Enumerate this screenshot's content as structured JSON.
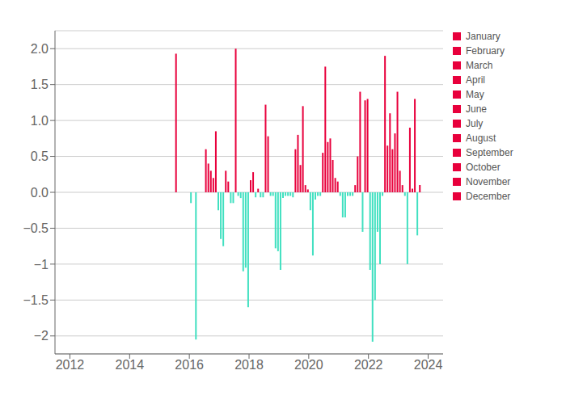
{
  "chart_data": {
    "type": "bar",
    "x_numeric": true,
    "xlim": [
      2011.5,
      2024.5
    ],
    "xticks": [
      2012,
      2014,
      2016,
      2018,
      2020,
      2022,
      2024
    ],
    "ylim": [
      -2.25,
      2.25
    ],
    "yticks": [
      {
        "value": -2.0,
        "label": "−2"
      },
      {
        "value": -1.5,
        "label": "−1.5"
      },
      {
        "value": -1.0,
        "label": "−1"
      },
      {
        "value": -0.5,
        "label": "−0.5"
      },
      {
        "value": 0.0,
        "label": "0.0"
      },
      0.5,
      {
        "value": 1.0,
        "label": "1.0"
      },
      1.5,
      {
        "value": 2.0,
        "label": "2.0"
      }
    ],
    "grid": true,
    "legend": "right",
    "series": [
      {
        "name": "January",
        "color": "#e8003c",
        "x": [
          2015.5416666666667,
          2016.5416666666667,
          2017.5416666666667,
          2018.5416666666667,
          2019.5416666666667,
          2020.5416666666667,
          2021.5416666666667,
          2022.5416666666667,
          2023.5416666666667
        ],
        "values": [
          1.93,
          0.6,
          2.0,
          1.22,
          0.6,
          1.75,
          0.1,
          1.9,
          1.3
        ],
        "colors": [
          "#e8003c",
          "#e8003c",
          "#e8003c",
          "#e8003c",
          "#e8003c",
          "#e8003c",
          "#e8003c",
          "#e8003c",
          "#e8003c"
        ]
      },
      {
        "name": "February",
        "color": "#e8003c",
        "x": [
          2016.625,
          2017.625,
          2018.625,
          2019.625,
          2020.625,
          2021.625,
          2022.625,
          2023.625
        ],
        "values": [
          0.4,
          -0.05,
          0.78,
          0.8,
          0.7,
          0.5,
          0.65,
          -0.6
        ],
        "colors": [
          "#e8003c",
          "#40e0c0",
          "#e8003c",
          "#e8003c",
          "#e8003c",
          "#e8003c",
          "#e8003c",
          "#40e0c0"
        ]
      },
      {
        "name": "March",
        "color": "#e8003c",
        "x": [
          2016.7083333333333,
          2017.7083333333333,
          2018.7083333333333,
          2019.7083333333333,
          2020.7083333333333,
          2021.7083333333333,
          2022.7083333333333,
          2023.7083333333333
        ],
        "values": [
          0.3,
          -0.08,
          -0.05,
          0.38,
          0.75,
          1.4,
          1.1,
          0.1
        ],
        "colors": [
          "#e8003c",
          "#40e0c0",
          "#40e0c0",
          "#e8003c",
          "#e8003c",
          "#e8003c",
          "#e8003c",
          "#e8003c"
        ]
      },
      {
        "name": "April",
        "color": "#e8003c",
        "x": [
          2016.7916666666667,
          2017.7916666666667,
          2018.7916666666667,
          2019.7916666666667,
          2020.7916666666667,
          2021.7916666666667,
          2022.7916666666667
        ],
        "values": [
          0.2,
          -1.1,
          -0.05,
          1.2,
          0.45,
          -0.55,
          0.6
        ],
        "colors": [
          "#e8003c",
          "#40e0c0",
          "#40e0c0",
          "#e8003c",
          "#e8003c",
          "#40e0c0",
          "#e8003c"
        ]
      },
      {
        "name": "May",
        "color": "#e8003c",
        "x": [
          2016.875,
          2017.875,
          2018.875,
          2019.875,
          2020.875,
          2021.875,
          2022.875
        ],
        "values": [
          0.85,
          -1.05,
          -0.78,
          0.1,
          0.2,
          1.28,
          0.82
        ],
        "colors": [
          "#e8003c",
          "#40e0c0",
          "#40e0c0",
          "#e8003c",
          "#e8003c",
          "#e8003c",
          "#e8003c"
        ]
      },
      {
        "name": "June",
        "color": "#e8003c",
        "x": [
          2016.9583333333333,
          2017.9583333333333,
          2018.9583333333333,
          2019.9583333333333,
          2020.9583333333333,
          2021.9583333333333,
          2022.9583333333333
        ],
        "values": [
          -0.25,
          -1.6,
          -0.82,
          0.04,
          0.15,
          1.3,
          1.4
        ],
        "colors": [
          "#40e0c0",
          "#40e0c0",
          "#40e0c0",
          "#e8003c",
          "#e8003c",
          "#e8003c",
          "#e8003c"
        ]
      },
      {
        "name": "July",
        "color": "#e8003c",
        "x": [
          2016.0416666666667,
          2017.0416666666667,
          2018.0416666666667,
          2019.0416666666667,
          2020.0416666666667,
          2021.0416666666667,
          2022.0416666666667,
          2023.0416666666667
        ],
        "values": [
          -0.15,
          -0.65,
          0.17,
          -1.08,
          -0.25,
          -0.05,
          -1.08,
          0.3
        ],
        "colors": [
          "#40e0c0",
          "#40e0c0",
          "#e8003c",
          "#40e0c0",
          "#40e0c0",
          "#40e0c0",
          "#40e0c0",
          "#e8003c"
        ]
      },
      {
        "name": "August",
        "color": "#e8003c",
        "x": [
          2017.125,
          2018.125,
          2019.125,
          2020.125,
          2021.125,
          2022.125,
          2023.125
        ],
        "values": [
          -0.75,
          0.28,
          -0.08,
          -0.88,
          -0.35,
          -2.08,
          0.1
        ],
        "colors": [
          "#40e0c0",
          "#e8003c",
          "#40e0c0",
          "#40e0c0",
          "#40e0c0",
          "#40e0c0",
          "#e8003c"
        ]
      },
      {
        "name": "September",
        "color": "#e8003c",
        "x": [
          2016.2083333333333,
          2017.2083333333333,
          2018.2083333333333,
          2019.2083333333333,
          2020.2083333333333,
          2021.2083333333333,
          2022.2083333333333,
          2023.2083333333333
        ],
        "values": [
          -2.05,
          0.3,
          -0.07,
          -0.05,
          -0.1,
          -0.35,
          -1.5,
          -0.05
        ],
        "colors": [
          "#40e0c0",
          "#e8003c",
          "#40e0c0",
          "#40e0c0",
          "#40e0c0",
          "#40e0c0",
          "#40e0c0",
          "#40e0c0"
        ]
      },
      {
        "name": "October",
        "color": "#e8003c",
        "x": [
          2017.2916666666667,
          2018.2916666666667,
          2019.2916666666667,
          2020.2916666666667,
          2021.2916666666667,
          2022.2916666666667,
          2023.2916666666667
        ],
        "values": [
          0.15,
          0.05,
          -0.05,
          -0.05,
          -0.05,
          -0.55,
          -1.0
        ],
        "colors": [
          "#e8003c",
          "#e8003c",
          "#40e0c0",
          "#40e0c0",
          "#40e0c0",
          "#40e0c0",
          "#40e0c0"
        ]
      },
      {
        "name": "November",
        "color": "#e8003c",
        "x": [
          2017.375,
          2018.375,
          2019.375,
          2020.375,
          2021.375,
          2022.375,
          2023.375
        ],
        "values": [
          -0.15,
          -0.07,
          -0.05,
          -0.05,
          -0.05,
          -1.0,
          0.9
        ],
        "colors": [
          "#40e0c0",
          "#40e0c0",
          "#40e0c0",
          "#40e0c0",
          "#40e0c0",
          "#40e0c0",
          "#e8003c"
        ]
      },
      {
        "name": "December",
        "color": "#e8003c",
        "x": [
          2017.4583333333333,
          2018.4583333333333,
          2019.4583333333333,
          2020.4583333333333,
          2021.4583333333333,
          2022.4583333333333,
          2023.4583333333333
        ],
        "values": [
          -0.15,
          -0.07,
          -0.07,
          0.55,
          -0.05,
          -0.05,
          0.05
        ],
        "colors": [
          "#40e0c0",
          "#40e0c0",
          "#40e0c0",
          "#e8003c",
          "#40e0c0",
          "#40e0c0",
          "#e8003c"
        ]
      }
    ]
  }
}
